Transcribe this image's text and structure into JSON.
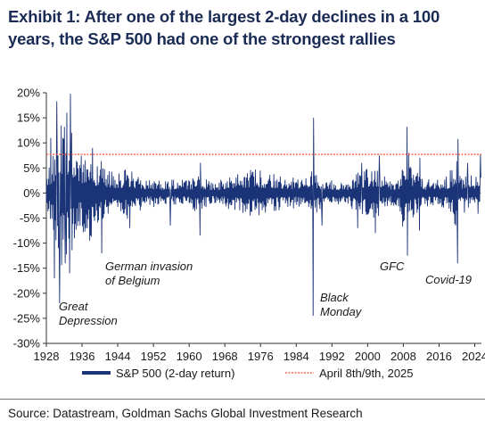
{
  "title": "Exhibit 1: After one of the largest 2-day declines in a 100 years, the S&P 500 had one of the strongest rallies",
  "source": "Source: Datastream, Goldman Sachs Global Investment Research",
  "colors": {
    "series": "#1b3478",
    "reference": "#ff4b2e",
    "title": "#1a2b55"
  },
  "chart_data": {
    "type": "line",
    "ylim": [
      -30,
      20
    ],
    "xlim": [
      1928,
      2025.5
    ],
    "y_ticks": [
      "20%",
      "15%",
      "10%",
      "5%",
      "0%",
      "-5%",
      "-10%",
      "-15%",
      "-20%",
      "-25%",
      "-30%"
    ],
    "x_ticks": [
      "1928",
      "1936",
      "1944",
      "1952",
      "1960",
      "1968",
      "1976",
      "1984",
      "1992",
      "2000",
      "2008",
      "2016",
      "2024"
    ],
    "legend": {
      "placement": "bottom",
      "series_label": "S&P 500 (2-day return)",
      "reference_label": "April 8th/9th, 2025"
    },
    "reference_value": 7.7,
    "annotations": [
      {
        "lines": [
          "Great",
          "Depression"
        ]
      },
      {
        "lines": [
          "German invasion",
          "of Belgium"
        ]
      },
      {
        "lines": [
          "Black",
          "Monday"
        ]
      },
      {
        "lines": [
          "GFC"
        ]
      },
      {
        "lines": [
          "Covid-19"
        ]
      }
    ],
    "volatility_profile": [
      [
        1928,
        3
      ],
      [
        1929,
        5
      ],
      [
        1930,
        7
      ],
      [
        1931,
        9
      ],
      [
        1932,
        11
      ],
      [
        1933,
        10
      ],
      [
        1934,
        7
      ],
      [
        1935,
        5
      ],
      [
        1937,
        6
      ],
      [
        1938,
        6.5
      ],
      [
        1939,
        4
      ],
      [
        1940,
        4.5
      ],
      [
        1942,
        3
      ],
      [
        1945,
        2.5
      ],
      [
        1946,
        3.5
      ],
      [
        1950,
        2
      ],
      [
        1955,
        1.8
      ],
      [
        1960,
        1.8
      ],
      [
        1962,
        2.8
      ],
      [
        1965,
        1.4
      ],
      [
        1970,
        2.4
      ],
      [
        1974,
        3.3
      ],
      [
        1980,
        2.4
      ],
      [
        1985,
        2
      ],
      [
        1987,
        3.3
      ],
      [
        1990,
        2
      ],
      [
        1995,
        1.5
      ],
      [
        1998,
        2.8
      ],
      [
        2000,
        3.3
      ],
      [
        2002,
        3.5
      ],
      [
        2005,
        1.6
      ],
      [
        2007,
        2.2
      ],
      [
        2008,
        5.5
      ],
      [
        2009,
        4.3
      ],
      [
        2011,
        2.8
      ],
      [
        2013,
        1.8
      ],
      [
        2016,
        1.9
      ],
      [
        2018,
        2.4
      ],
      [
        2020,
        4.8
      ],
      [
        2021,
        1.9
      ],
      [
        2022,
        3
      ],
      [
        2024,
        2
      ],
      [
        2025,
        4.2
      ]
    ],
    "spikes": [
      {
        "x": 1929.0,
        "y": 11
      },
      {
        "x": 1929.8,
        "y": -17
      },
      {
        "x": 1930.3,
        "y": 18.3
      },
      {
        "x": 1931.0,
        "y": -22
      },
      {
        "x": 1931.7,
        "y": 11
      },
      {
        "x": 1932.2,
        "y": -14
      },
      {
        "x": 1932.6,
        "y": 16
      },
      {
        "x": 1933.2,
        "y": -16
      },
      {
        "x": 1933.4,
        "y": 19.8
      },
      {
        "x": 1933.7,
        "y": 12
      },
      {
        "x": 1934.3,
        "y": -9
      },
      {
        "x": 1937.7,
        "y": -9.5
      },
      {
        "x": 1938.3,
        "y": 9
      },
      {
        "x": 1940.4,
        "y": -12
      },
      {
        "x": 1946.7,
        "y": -7
      },
      {
        "x": 1955.8,
        "y": -6.5
      },
      {
        "x": 1962.4,
        "y": -8.5
      },
      {
        "x": 1962.5,
        "y": 6
      },
      {
        "x": 1987.8,
        "y": -24.5
      },
      {
        "x": 1987.85,
        "y": 15
      },
      {
        "x": 1989.8,
        "y": -6.5
      },
      {
        "x": 1997.8,
        "y": -7
      },
      {
        "x": 1998.7,
        "y": 6
      },
      {
        "x": 2001.7,
        "y": -8
      },
      {
        "x": 2002.6,
        "y": 7.5
      },
      {
        "x": 2008.8,
        "y": 13.2
      },
      {
        "x": 2008.9,
        "y": -12.5
      },
      {
        "x": 2009.2,
        "y": 8
      },
      {
        "x": 2011.6,
        "y": -7.5
      },
      {
        "x": 2011.7,
        "y": 7
      },
      {
        "x": 2020.2,
        "y": -14
      },
      {
        "x": 2020.25,
        "y": 10.8
      },
      {
        "x": 2022.4,
        "y": 6
      },
      {
        "x": 2025.27,
        "y": -10.5
      },
      {
        "x": 2025.28,
        "y": 7.8
      }
    ]
  }
}
